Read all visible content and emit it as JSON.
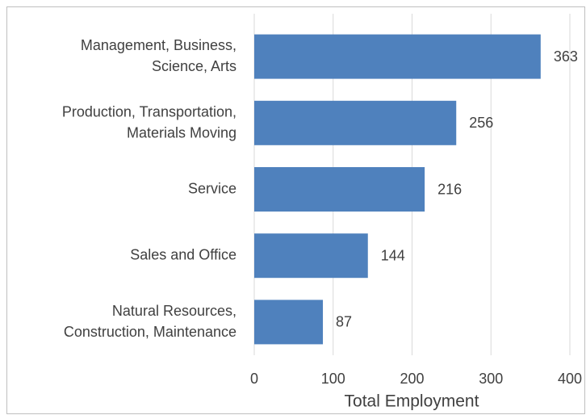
{
  "chart_data": {
    "type": "bar",
    "orientation": "horizontal",
    "categories": [
      "Management, Business,\nScience, Arts",
      "Production, Transportation,\nMaterials Moving",
      "Service",
      "Sales and Office",
      "Natural Resources,\nConstruction, Maintenance"
    ],
    "values": [
      363,
      256,
      216,
      144,
      87
    ],
    "color": "#4f81bd",
    "xlabel": "Total Employment",
    "xlim": [
      0,
      400
    ],
    "xticks": [
      0,
      100,
      200,
      300,
      400
    ],
    "grid": true
  }
}
